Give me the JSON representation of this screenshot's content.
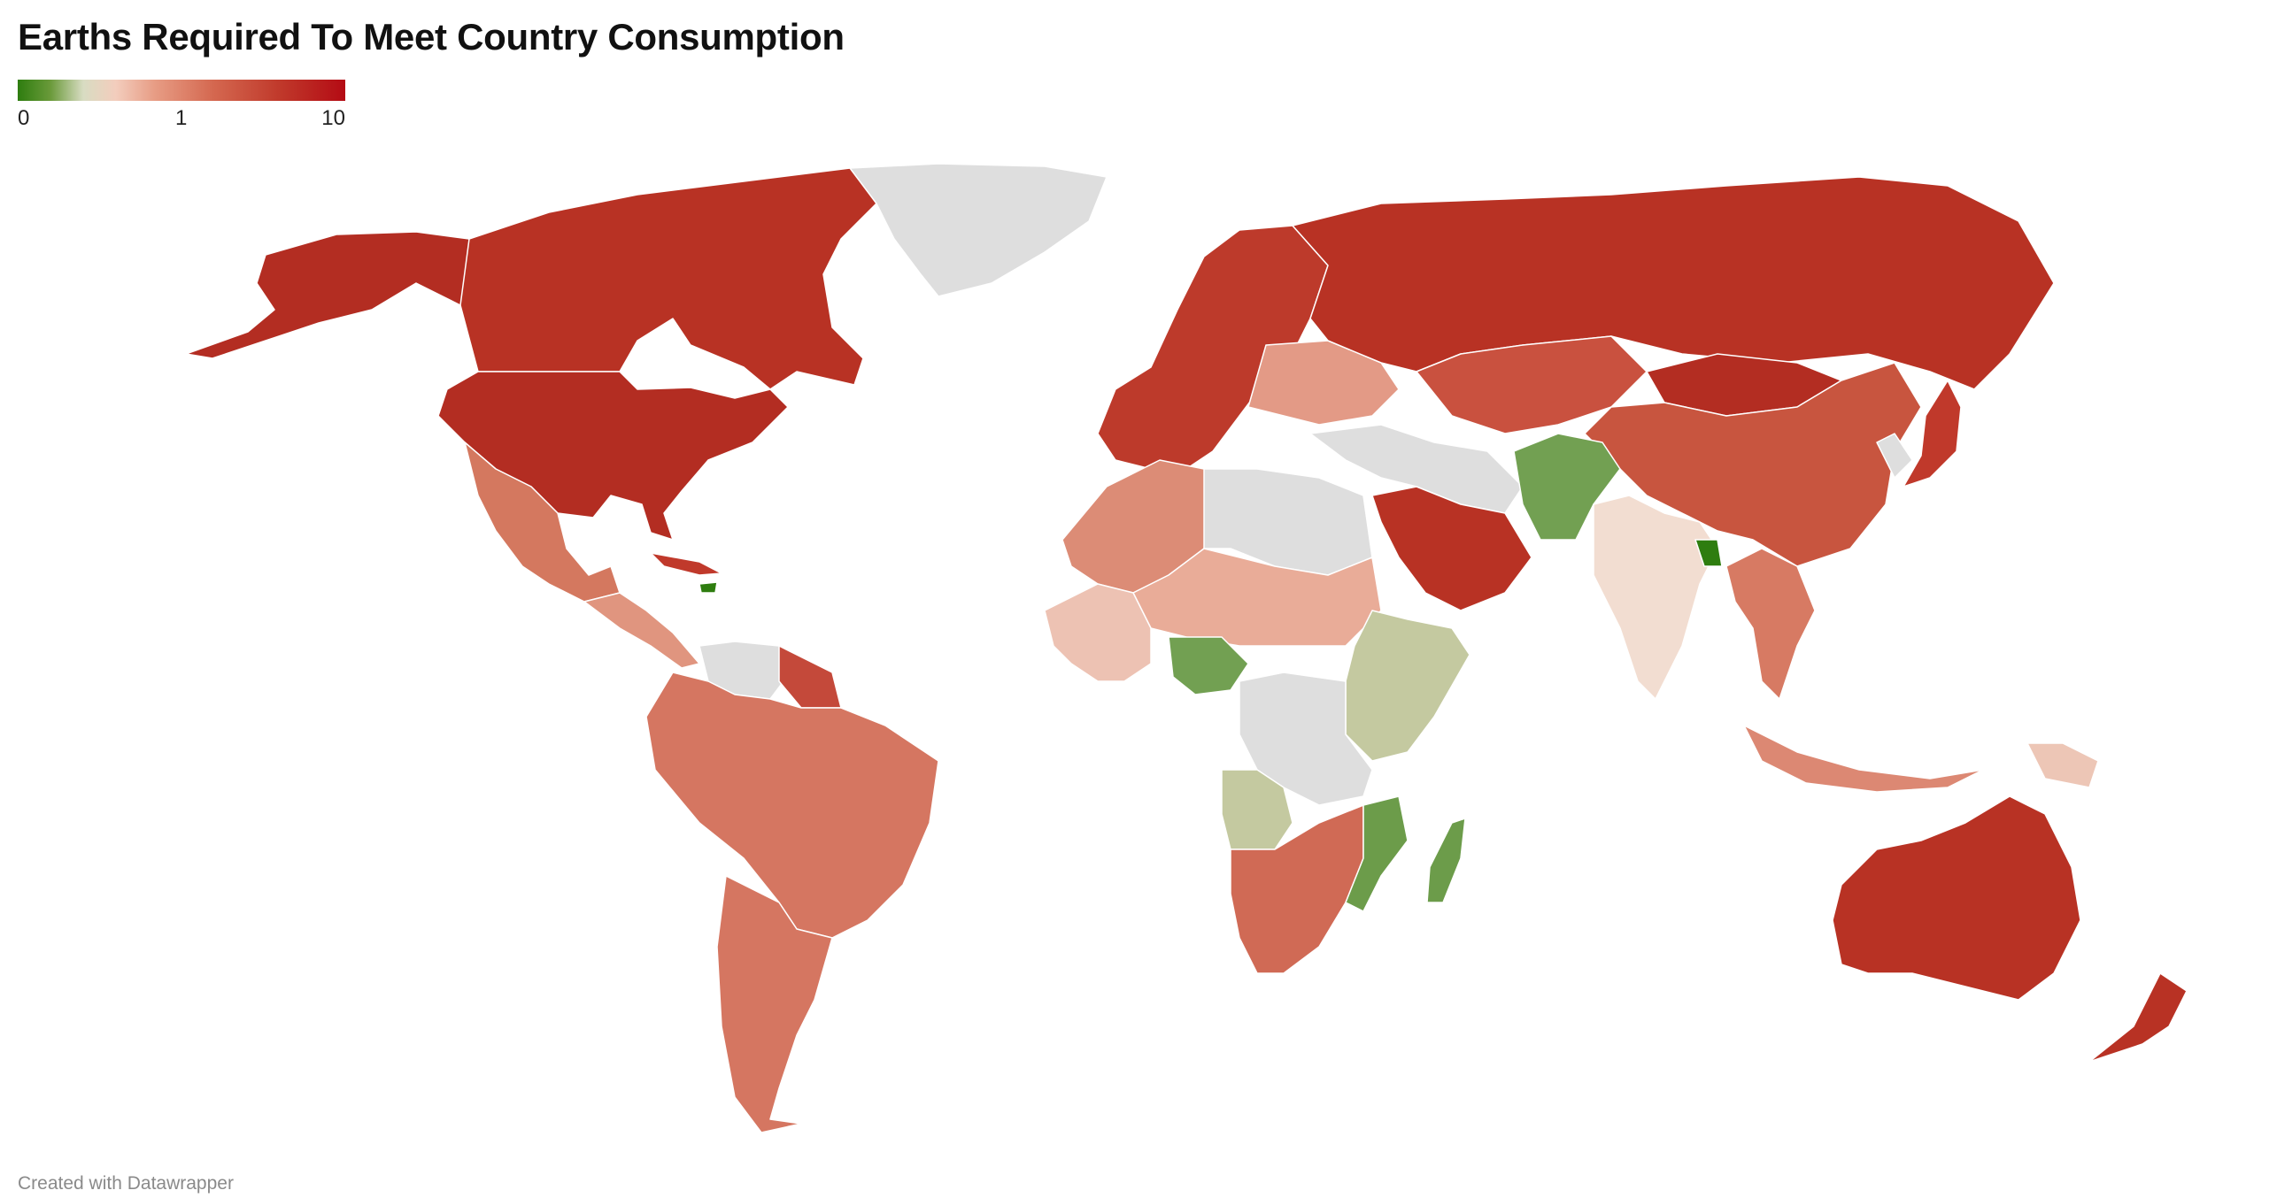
{
  "title": "Earths Required To Meet Country Consumption",
  "legend": {
    "ticks": [
      "0",
      "1",
      "10"
    ],
    "colors": {
      "min_green": "#2e7d0f",
      "neutral": "#e9d8cf",
      "max_red": "#b40b14",
      "no_data": "#dedede"
    }
  },
  "map": {
    "regions": [
      {
        "id": "canada",
        "fill": "#b83224"
      },
      {
        "id": "usa",
        "fill": "#b32d22"
      },
      {
        "id": "alaska",
        "fill": "#b32d22"
      },
      {
        "id": "greenland",
        "fill": "#dedede"
      },
      {
        "id": "mexico",
        "fill": "#d4785f"
      },
      {
        "id": "central-america",
        "fill": "#e0957f"
      },
      {
        "id": "cuba",
        "fill": "#c0392b"
      },
      {
        "id": "haiti",
        "fill": "#2e7d0f"
      },
      {
        "id": "venezuela",
        "fill": "#dedede"
      },
      {
        "id": "guianas",
        "fill": "#c4493a"
      },
      {
        "id": "south-america",
        "fill": "#d57661"
      },
      {
        "id": "chile-argentina",
        "fill": "#d57661"
      },
      {
        "id": "europe",
        "fill": "#bd3a2b"
      },
      {
        "id": "eastern-europe",
        "fill": "#e39a86"
      },
      {
        "id": "russia",
        "fill": "#b83224"
      },
      {
        "id": "kazakhstan",
        "fill": "#c9513f"
      },
      {
        "id": "mongolia",
        "fill": "#b32d22"
      },
      {
        "id": "china",
        "fill": "#c8553f"
      },
      {
        "id": "japan",
        "fill": "#c0392b"
      },
      {
        "id": "korea",
        "fill": "#dedede"
      },
      {
        "id": "middle-east",
        "fill": "#dedede"
      },
      {
        "id": "saudi-arabia",
        "fill": "#b83224"
      },
      {
        "id": "afghanistan-pakistan",
        "fill": "#72a052"
      },
      {
        "id": "india",
        "fill": "#f2ddd1"
      },
      {
        "id": "bangladesh",
        "fill": "#2e7d0f"
      },
      {
        "id": "southeast-asia",
        "fill": "#d77a63"
      },
      {
        "id": "indonesia",
        "fill": "#dc8873"
      },
      {
        "id": "png",
        "fill": "#edc6b6"
      },
      {
        "id": "australia",
        "fill": "#b83224"
      },
      {
        "id": "new-zealand",
        "fill": "#b83224"
      },
      {
        "id": "north-africa",
        "fill": "#dc8c76"
      },
      {
        "id": "sahara-nodata",
        "fill": "#dedede"
      },
      {
        "id": "west-africa",
        "fill": "#edc2b3"
      },
      {
        "id": "nigeria",
        "fill": "#72a052"
      },
      {
        "id": "sahel",
        "fill": "#e9ac98"
      },
      {
        "id": "east-africa",
        "fill": "#c4c9a0"
      },
      {
        "id": "central-africa",
        "fill": "#dedede"
      },
      {
        "id": "angola",
        "fill": "#c4c9a0"
      },
      {
        "id": "southern-africa",
        "fill": "#d06a55"
      },
      {
        "id": "mozambique",
        "fill": "#6c9c4a"
      },
      {
        "id": "madagascar",
        "fill": "#6c9c4a"
      }
    ]
  },
  "footer": "Created with Datawrapper"
}
